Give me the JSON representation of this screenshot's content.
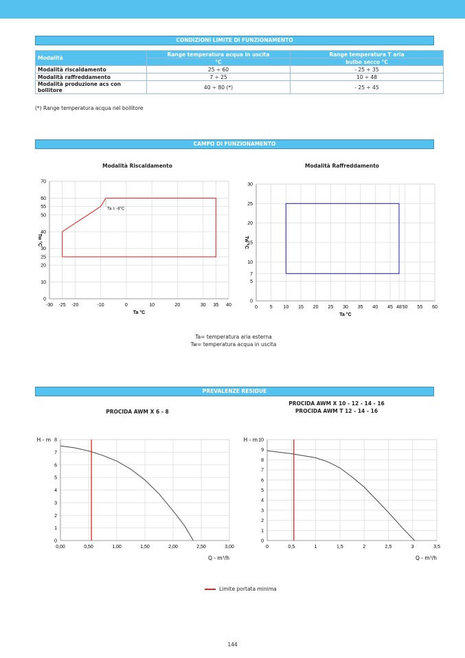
{
  "section1": {
    "title": "CONDIZIONI LIMITE DI FUNZIONAMENTO",
    "table": {
      "col1_header": "Modalità",
      "col2_header": "Range temperatura acqua in uscita",
      "col2_sub": "°C",
      "col3_header": "Range temperatura T aria",
      "col3_sub": "bulbo secco °C",
      "rows": [
        {
          "mode": "Modalità riscaldamento",
          "water": "25 ÷ 60",
          "air": "- 25 ÷ 35"
        },
        {
          "mode": "Modalità raffreddamento",
          "water": "7 ÷ 25",
          "air": "10 ÷ 48"
        },
        {
          "mode": "Modalità produzione acs con bollitore",
          "water": "40 ÷ 80 (*)",
          "air": "- 25 ÷ 45"
        }
      ]
    },
    "footnote": "(*) Range temperatura acqua nel bollitore"
  },
  "section2": {
    "title": "CAMPO DI FUNZIONAMENTO",
    "note1": "Ta= temperatura aria esterna",
    "note2": "Tw= temperatura acqua in uscita"
  },
  "section3": {
    "title": "PREVALENZE RESIDUE",
    "legend": "Limite portata minima"
  },
  "page_number": "144",
  "chart_data": [
    {
      "type": "line",
      "title": "Modalità Riscaldamento",
      "xlabel": "Ta °C",
      "ylabel": "Tw °C",
      "xlim": [
        -30,
        40
      ],
      "ylim": [
        0,
        70
      ],
      "xticks": [
        -30,
        -25,
        -20,
        -10,
        0,
        10,
        20,
        30,
        35,
        40
      ],
      "yticks": [
        0,
        10,
        20,
        25,
        30,
        40,
        50,
        55,
        60,
        70
      ],
      "grid": true,
      "color": "#e03030",
      "series": [
        {
          "name": "envelope",
          "x": [
            -25,
            -25,
            -10,
            -8,
            35,
            35,
            -25
          ],
          "y": [
            25,
            40,
            55,
            60,
            60,
            25,
            25
          ]
        }
      ],
      "annotation": "Ta = -8°C"
    },
    {
      "type": "line",
      "title": "Modalità Raffreddamento",
      "xlabel": "Ta °C",
      "ylabel": "Tw °C",
      "xlim": [
        0,
        60
      ],
      "ylim": [
        0,
        30
      ],
      "xticks": [
        0,
        5,
        10,
        15,
        20,
        25,
        30,
        35,
        40,
        45,
        48,
        50,
        55,
        60
      ],
      "yticks": [
        0,
        5,
        7,
        10,
        15,
        20,
        25,
        30
      ],
      "grid": true,
      "color": "#3030c0",
      "series": [
        {
          "name": "envelope",
          "x": [
            10,
            10,
            48,
            48,
            10
          ],
          "y": [
            7,
            25,
            25,
            7,
            7
          ]
        }
      ]
    },
    {
      "type": "line",
      "title": "PROCIDA AWM X 6 - 8",
      "xlabel": "Q - m³/h",
      "ylabel": "H - m",
      "xlim": [
        0,
        3
      ],
      "ylim": [
        0,
        8
      ],
      "xticks": [
        "0,00",
        "0,50",
        "1,00",
        "1,50",
        "2,00",
        "2,50",
        "3,00"
      ],
      "yticks": [
        0,
        1,
        2,
        3,
        4,
        5,
        6,
        7,
        8
      ],
      "grid": true,
      "color": "#555555",
      "min_flow": 0.55,
      "series": [
        {
          "name": "curve",
          "x": [
            0,
            0.25,
            0.5,
            0.75,
            1.0,
            1.25,
            1.5,
            1.75,
            2.0,
            2.2,
            2.36
          ],
          "y": [
            7.5,
            7.35,
            7.1,
            6.75,
            6.3,
            5.65,
            4.8,
            3.7,
            2.35,
            1.2,
            0
          ]
        }
      ]
    },
    {
      "type": "line",
      "title": "PROCIDA AWM X 10 - 12 - 14 - 16",
      "title2": "PROCIDA AWM T 12 - 14 - 16",
      "xlabel": "Q - m³/h",
      "ylabel": "H - m",
      "xlim": [
        0,
        3.5
      ],
      "ylim": [
        0,
        10
      ],
      "xticks": [
        "0",
        "0,5",
        "1",
        "1,5",
        "2",
        "2,5",
        "3",
        "3,5"
      ],
      "yticks": [
        0,
        1,
        2,
        3,
        4,
        5,
        6,
        7,
        8,
        9,
        10
      ],
      "grid": true,
      "color": "#555555",
      "min_flow": 0.55,
      "series": [
        {
          "name": "curve",
          "x": [
            0,
            0.5,
            1.0,
            1.25,
            1.5,
            1.75,
            2.0,
            2.5,
            2.8,
            3.04
          ],
          "y": [
            8.9,
            8.6,
            8.2,
            7.8,
            7.2,
            6.3,
            5.3,
            2.8,
            1.2,
            0
          ]
        }
      ]
    }
  ]
}
